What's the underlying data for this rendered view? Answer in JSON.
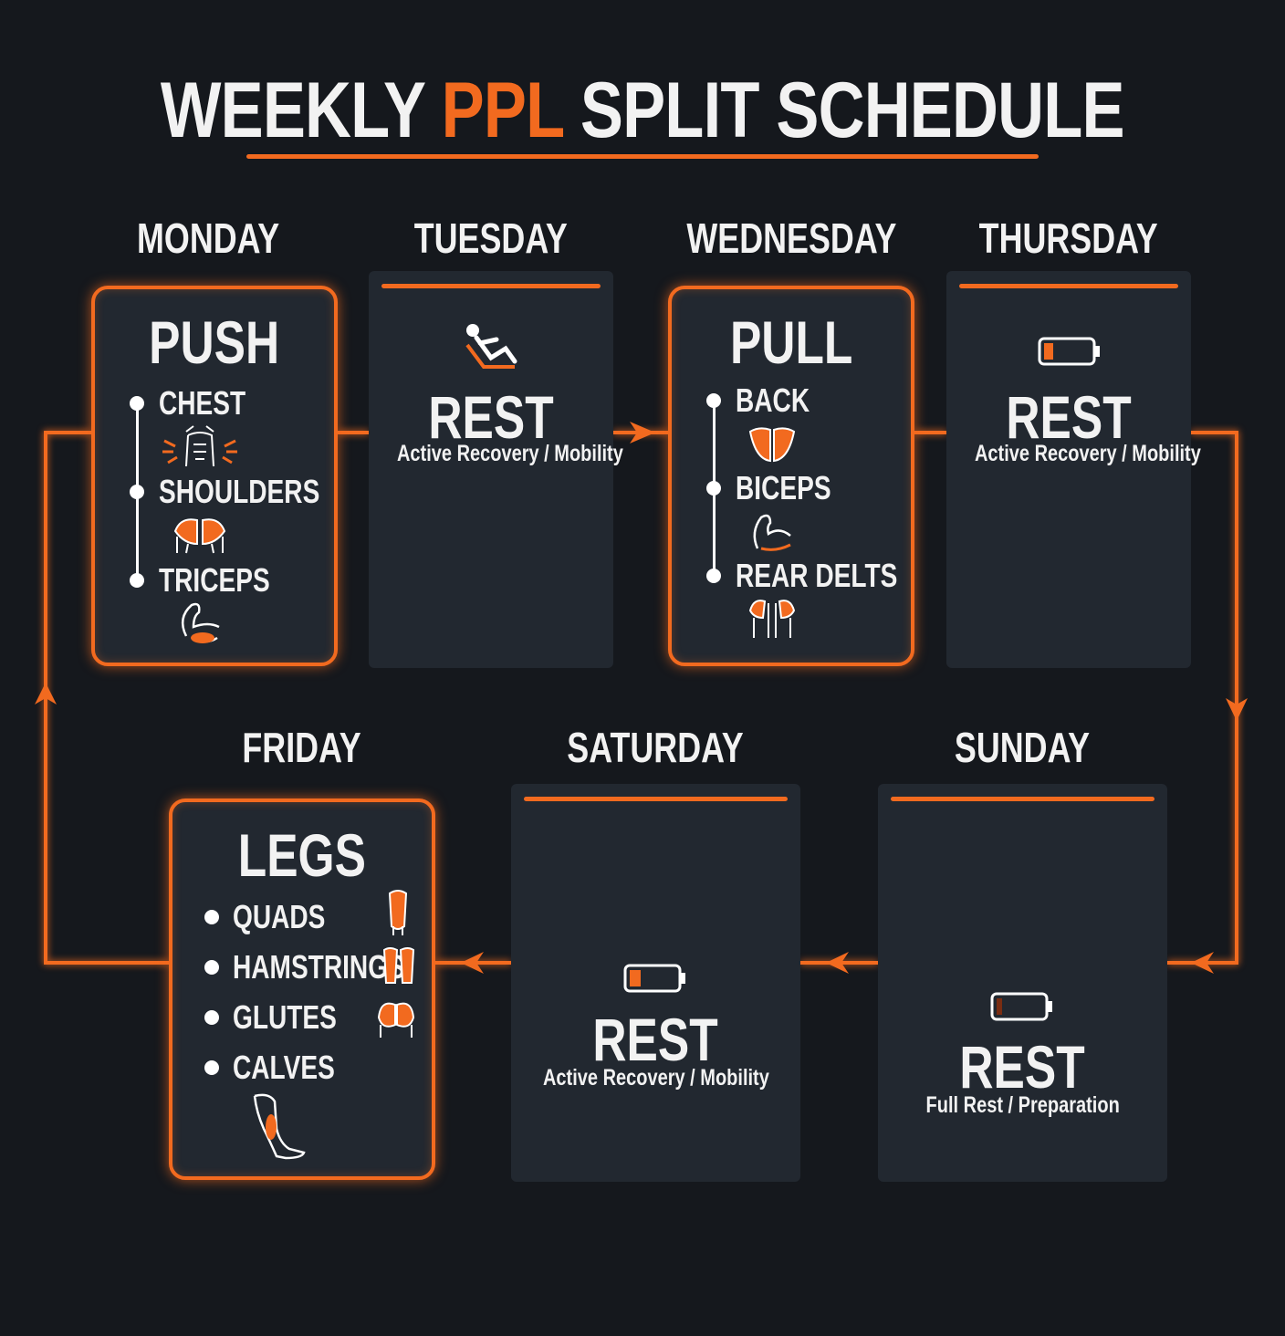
{
  "title": {
    "prefix": "WEEKLY",
    "accent": "PPL",
    "suffix": "SPLIT SCHEDULE"
  },
  "colors": {
    "background": "#15181d",
    "card": "#222830",
    "accent": "#f26a1f",
    "text": "#f2f2f2"
  },
  "days": {
    "monday": {
      "label": "MONDAY",
      "workout": "PUSH",
      "muscles": [
        "CHEST",
        "SHOULDERS",
        "TRICEPS"
      ],
      "icons": [
        "chest-icon",
        "shoulders-icon",
        "triceps-arm-icon"
      ]
    },
    "tuesday": {
      "label": "TUESDAY",
      "workout": "REST",
      "note": "Active Recovery / Mobility",
      "icon": "reclining-person-icon"
    },
    "wednesday": {
      "label": "WEDNESDAY",
      "workout": "PULL",
      "muscles": [
        "BACK",
        "BICEPS",
        "REAR DELTS"
      ],
      "icons": [
        "back-icon",
        "biceps-arm-icon",
        "rear-delts-icon"
      ]
    },
    "thursday": {
      "label": "THURSDAY",
      "workout": "REST",
      "note": "Active Recovery / Mobility",
      "icon": "low-battery-icon"
    },
    "friday": {
      "label": "FRIDAY",
      "workout": "LEGS",
      "muscles": [
        "QUADS",
        "HAMSTRINGS",
        "GLUTES",
        "CALVES"
      ],
      "icons": [
        "quads-icon",
        "hamstrings-icon",
        "glutes-icon",
        "calf-icon"
      ]
    },
    "saturday": {
      "label": "SATURDAY",
      "workout": "REST",
      "note": "Active Recovery / Mobility",
      "icon": "low-battery-icon"
    },
    "sunday": {
      "label": "SUNDAY",
      "workout": "REST",
      "note": "Full Rest / Preparation",
      "icon": "empty-battery-icon"
    }
  }
}
